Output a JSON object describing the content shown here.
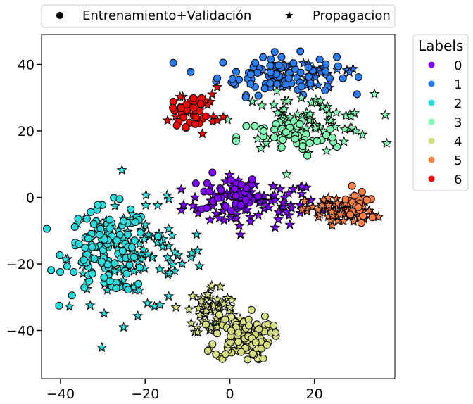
{
  "chart_data": {
    "type": "scatter",
    "title": "",
    "xlabel": "",
    "ylabel": "",
    "xlim": [
      -44.5,
      39
    ],
    "ylim": [
      -54.5,
      49
    ],
    "xticks": [
      -40,
      -20,
      0,
      20
    ],
    "yticks": [
      -40,
      -20,
      0,
      20,
      40
    ],
    "xtick_labels": [
      "−40",
      "−20",
      "0",
      "20"
    ],
    "ytick_labels": [
      "−40",
      "−20",
      "0",
      "20",
      "40"
    ],
    "grid": false,
    "marker_legend": {
      "placement": "top",
      "entries": [
        {
          "label": "Entrenamiento+Validación",
          "marker": "circle"
        },
        {
          "label": "Propagacion",
          "marker": "star"
        }
      ]
    },
    "color_legend": {
      "title": "Labels",
      "placement": "right",
      "entries": [
        {
          "label": "0",
          "color": "#7f00ff"
        },
        {
          "label": "1",
          "color": "#2c7ef7"
        },
        {
          "label": "2",
          "color": "#2adddd"
        },
        {
          "label": "3",
          "color": "#80ffb4"
        },
        {
          "label": "4",
          "color": "#d4dd80"
        },
        {
          "label": "5",
          "color": "#ff7e41"
        },
        {
          "label": "6",
          "color": "#ff0000"
        }
      ]
    },
    "clusters": [
      {
        "label": "0",
        "color": "#7f00ff",
        "circles": {
          "n": 40,
          "cx": 0,
          "cy": 1,
          "sx": 3.5,
          "sy": 3
        },
        "stars": {
          "n": 95,
          "cx": 5,
          "cy": -2,
          "sx": 8,
          "sy": 3.5
        }
      },
      {
        "label": "1",
        "color": "#2c7ef7",
        "circles": {
          "n": 95,
          "cx": 11,
          "cy": 37,
          "sx": 7,
          "sy": 3
        },
        "stars": {
          "n": 30,
          "cx": 20,
          "cy": 37,
          "sx": 7,
          "sy": 3
        }
      },
      {
        "label": "2",
        "color": "#2adddd",
        "circles": {
          "n": 130,
          "cx": -29,
          "cy": -16,
          "sx": 5,
          "sy": 6.5
        },
        "stars": {
          "n": 110,
          "cx": -22,
          "cy": -18,
          "sx": 8,
          "sy": 8
        }
      },
      {
        "label": "3",
        "color": "#80ffb4",
        "circles": {
          "n": 55,
          "cx": 14,
          "cy": 18,
          "sx": 6,
          "sy": 3
        },
        "stars": {
          "n": 75,
          "cx": 18,
          "cy": 23,
          "sx": 8,
          "sy": 4
        }
      },
      {
        "label": "4",
        "color": "#d4dd80",
        "circles": {
          "n": 110,
          "cx": 3,
          "cy": -42,
          "sx": 3.3,
          "sy": 3.5
        },
        "stars": {
          "n": 60,
          "cx": -4,
          "cy": -34,
          "sx": 3,
          "sy": 4
        }
      },
      {
        "label": "5",
        "color": "#ff7e41",
        "circles": {
          "n": 20,
          "cx": 31,
          "cy": -2,
          "sx": 2.5,
          "sy": 3.5
        },
        "stars": {
          "n": 90,
          "cx": 26,
          "cy": -4,
          "sx": 4,
          "sy": 2
        }
      },
      {
        "label": "6",
        "color": "#ff0000",
        "circles": {
          "n": 35,
          "cx": -9,
          "cy": 26,
          "sx": 2.3,
          "sy": 2.3
        },
        "stars": {
          "n": 20,
          "cx": -8,
          "cy": 27,
          "sx": 3,
          "sy": 3
        }
      }
    ]
  }
}
